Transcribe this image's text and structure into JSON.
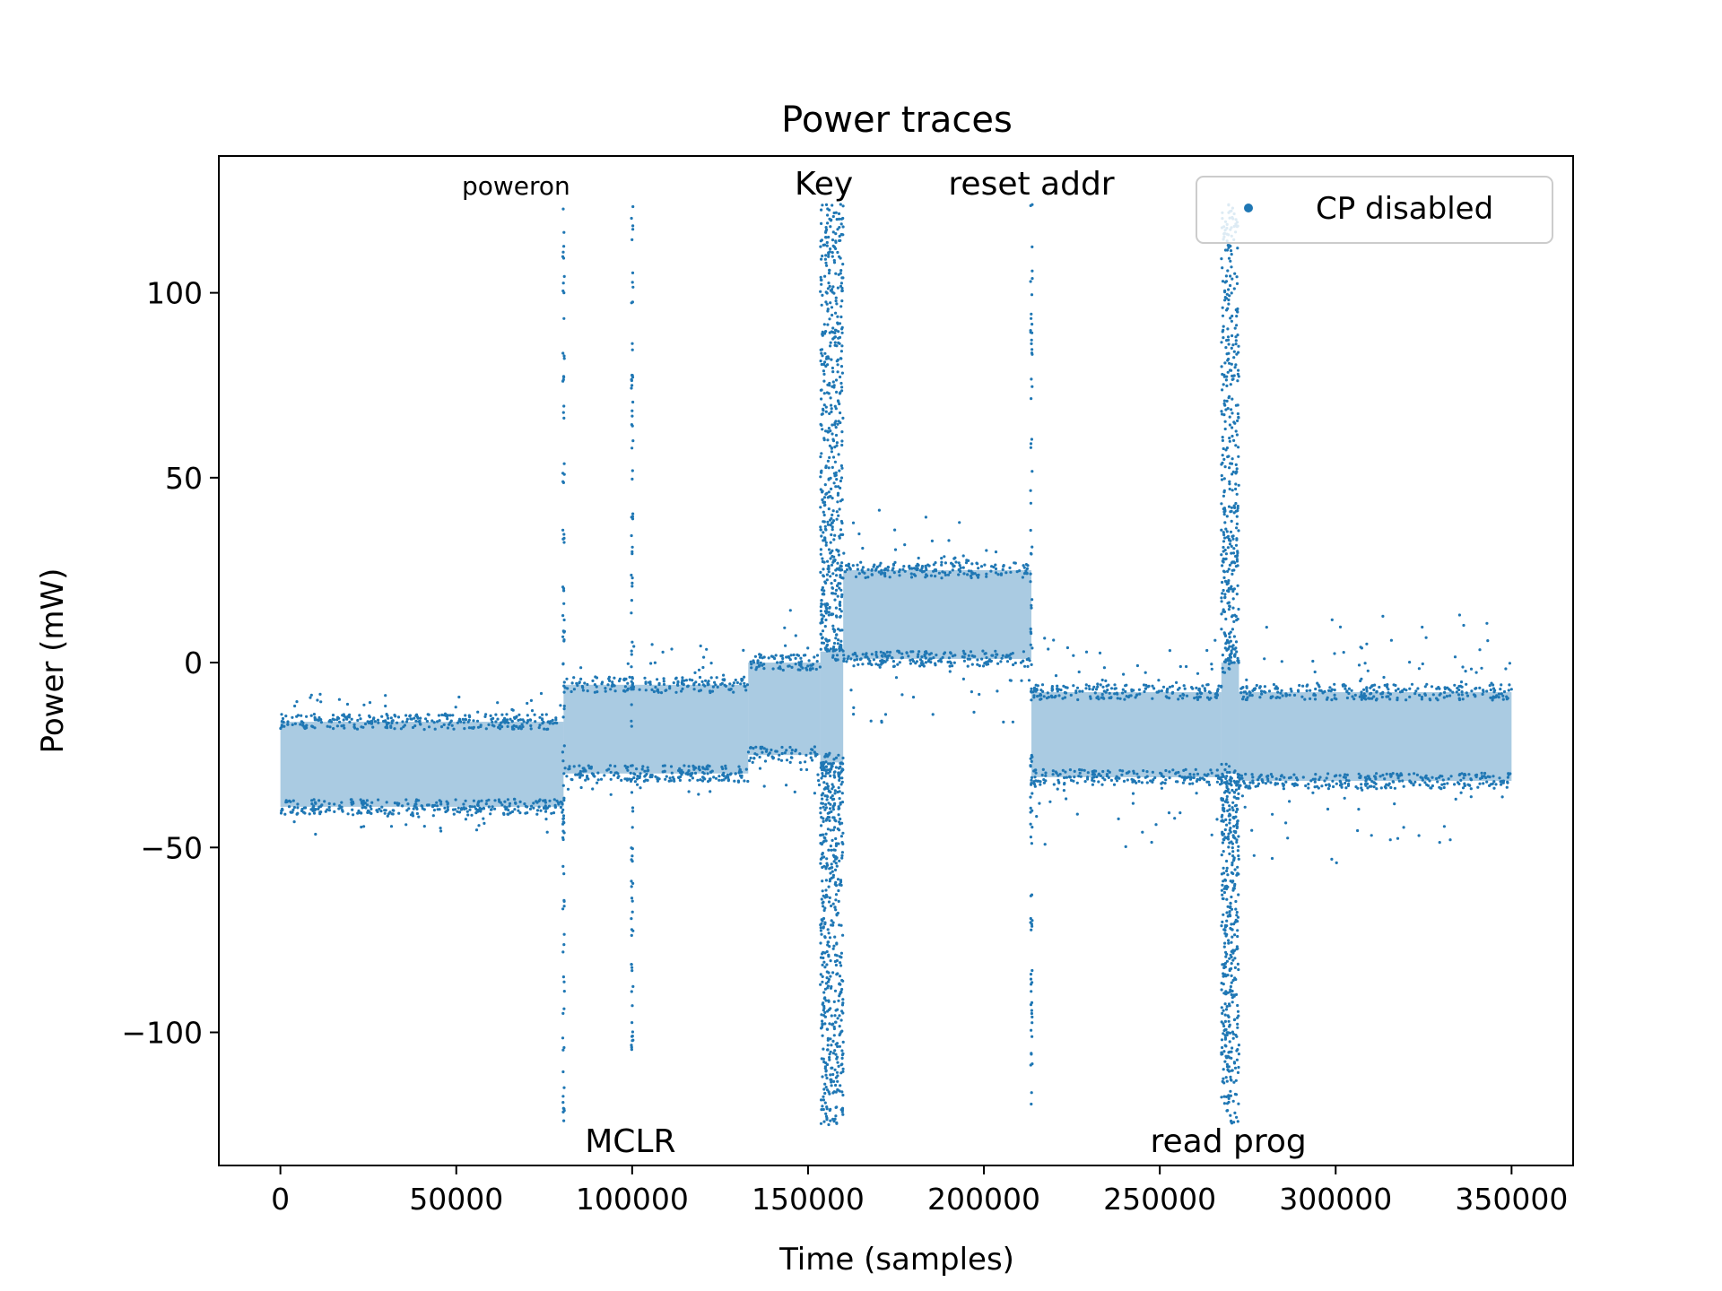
{
  "chart_data": {
    "type": "scatter",
    "title": "Power traces",
    "xlabel": "Time (samples)",
    "ylabel": "Power (mW)",
    "xlim": [
      -17500,
      367500
    ],
    "ylim": [
      -136,
      137
    ],
    "xticks": [
      0,
      50000,
      100000,
      150000,
      200000,
      250000,
      300000,
      350000
    ],
    "yticks": [
      -100,
      -50,
      0,
      50,
      100
    ],
    "ytick_labels": [
      "−100",
      "−50",
      "0",
      "50",
      "100"
    ],
    "grid": false,
    "legend": {
      "placement": "top-right"
    },
    "series": [
      {
        "name": "CP disabled",
        "color": "#1f77b4",
        "segments": [
          {
            "x_start": 0,
            "x_end": 80500,
            "band": [
              -39,
              -16
            ],
            "outliers": [
              -47,
              -8
            ]
          },
          {
            "x_start": 80500,
            "x_end": 133000,
            "band": [
              -30,
              -6
            ],
            "outliers": [
              -36,
              5
            ]
          },
          {
            "x_start": 133000,
            "x_end": 153500,
            "band": [
              -25,
              0
            ],
            "outliers": [
              -36,
              17
            ]
          },
          {
            "x_start": 153500,
            "x_end": 160000,
            "band": [
              -27,
              3
            ],
            "outliers": [
              -125,
              124
            ]
          },
          {
            "x_start": 160000,
            "x_end": 213500,
            "band": [
              1,
              25
            ],
            "outliers": [
              -17,
              42
            ]
          },
          {
            "x_start": 213500,
            "x_end": 267500,
            "band": [
              -31,
              -8
            ],
            "outliers": [
              -50,
              8
            ]
          },
          {
            "x_start": 267500,
            "x_end": 272500,
            "band": [
              -30,
              0
            ],
            "outliers": [
              -125,
              124
            ]
          },
          {
            "x_start": 272500,
            "x_end": 350000,
            "band": [
              -32,
              -8
            ],
            "outliers": [
              -55,
              13
            ]
          }
        ],
        "spikes": [
          {
            "x": 80500,
            "y_min": -125,
            "y_max": 124
          },
          {
            "x": 100000,
            "y_min": -107,
            "y_max": 124
          },
          {
            "x": 213500,
            "y_min": -125,
            "y_max": 124
          }
        ]
      }
    ],
    "annotations": [
      {
        "text": "poweron",
        "x": 67000,
        "y": 129.5,
        "size": "small"
      },
      {
        "text": "Key",
        "x": 154500,
        "y": 129.5,
        "size": "normal"
      },
      {
        "text": "reset addr",
        "x": 213500,
        "y": 129.5,
        "size": "normal"
      },
      {
        "text": "MCLR",
        "x": 99500,
        "y": -129.5,
        "size": "normal"
      },
      {
        "text": "read prog",
        "x": 269500,
        "y": -129.5,
        "size": "normal"
      }
    ]
  }
}
